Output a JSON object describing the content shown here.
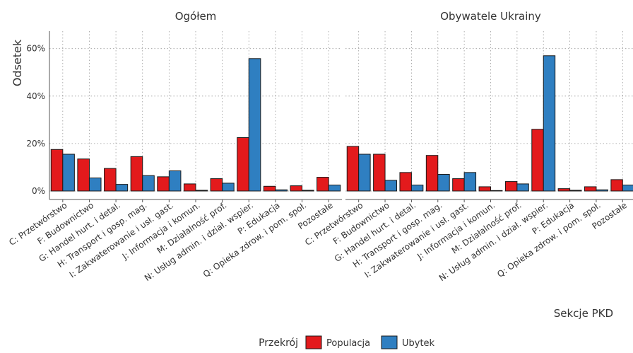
{
  "chart_data": {
    "type": "bar",
    "ylabel": "Odsetek",
    "xlabel": "Sekcje PKD",
    "ylim": [
      0,
      62
    ],
    "yticks": [
      0,
      20,
      40,
      60
    ],
    "ytick_labels": [
      "0%",
      "20%",
      "40%",
      "60%"
    ],
    "grid": true,
    "legend": {
      "title": "Przekrój",
      "position": "bottom",
      "entries": [
        {
          "label": "Populacja",
          "color": "#e31a1c"
        },
        {
          "label": "Ubytek",
          "color": "#2f7fc1"
        }
      ]
    },
    "categories": [
      "C: Przetwórstwo",
      "F: Budownictwo",
      "G: Handel hurt. i detal.",
      "H: Transport i gosp. mag.",
      "I: Zakwaterowanie i usł. gast.",
      "J: Informacja i komun.",
      "M: Działalność prof.",
      "N: Usług admin. i dział. wspier.",
      "P: Edukacja",
      "Q: Opieka zdrow. i pom. społ.",
      "Pozostałe"
    ],
    "panels": [
      {
        "title": "Ogółem",
        "series": [
          {
            "name": "Populacja",
            "values": [
              17.5,
              13.5,
              9.5,
              14.5,
              6.0,
              3.0,
              5.2,
              22.5,
              2.0,
              2.2,
              5.8
            ]
          },
          {
            "name": "Ubytek",
            "values": [
              15.5,
              5.5,
              2.8,
              6.5,
              8.5,
              0.3,
              3.3,
              55.8,
              0.5,
              0.3,
              2.5
            ]
          }
        ]
      },
      {
        "title": "Obywatele Ukrainy",
        "series": [
          {
            "name": "Populacja",
            "values": [
              18.8,
              15.5,
              7.8,
              15.0,
              5.2,
              1.8,
              4.0,
              26.0,
              1.0,
              1.8,
              4.8
            ]
          },
          {
            "name": "Ubytek",
            "values": [
              15.5,
              4.5,
              2.5,
              7.0,
              7.8,
              0.2,
              3.0,
              57.0,
              0.3,
              0.5,
              2.5
            ]
          }
        ]
      }
    ]
  }
}
